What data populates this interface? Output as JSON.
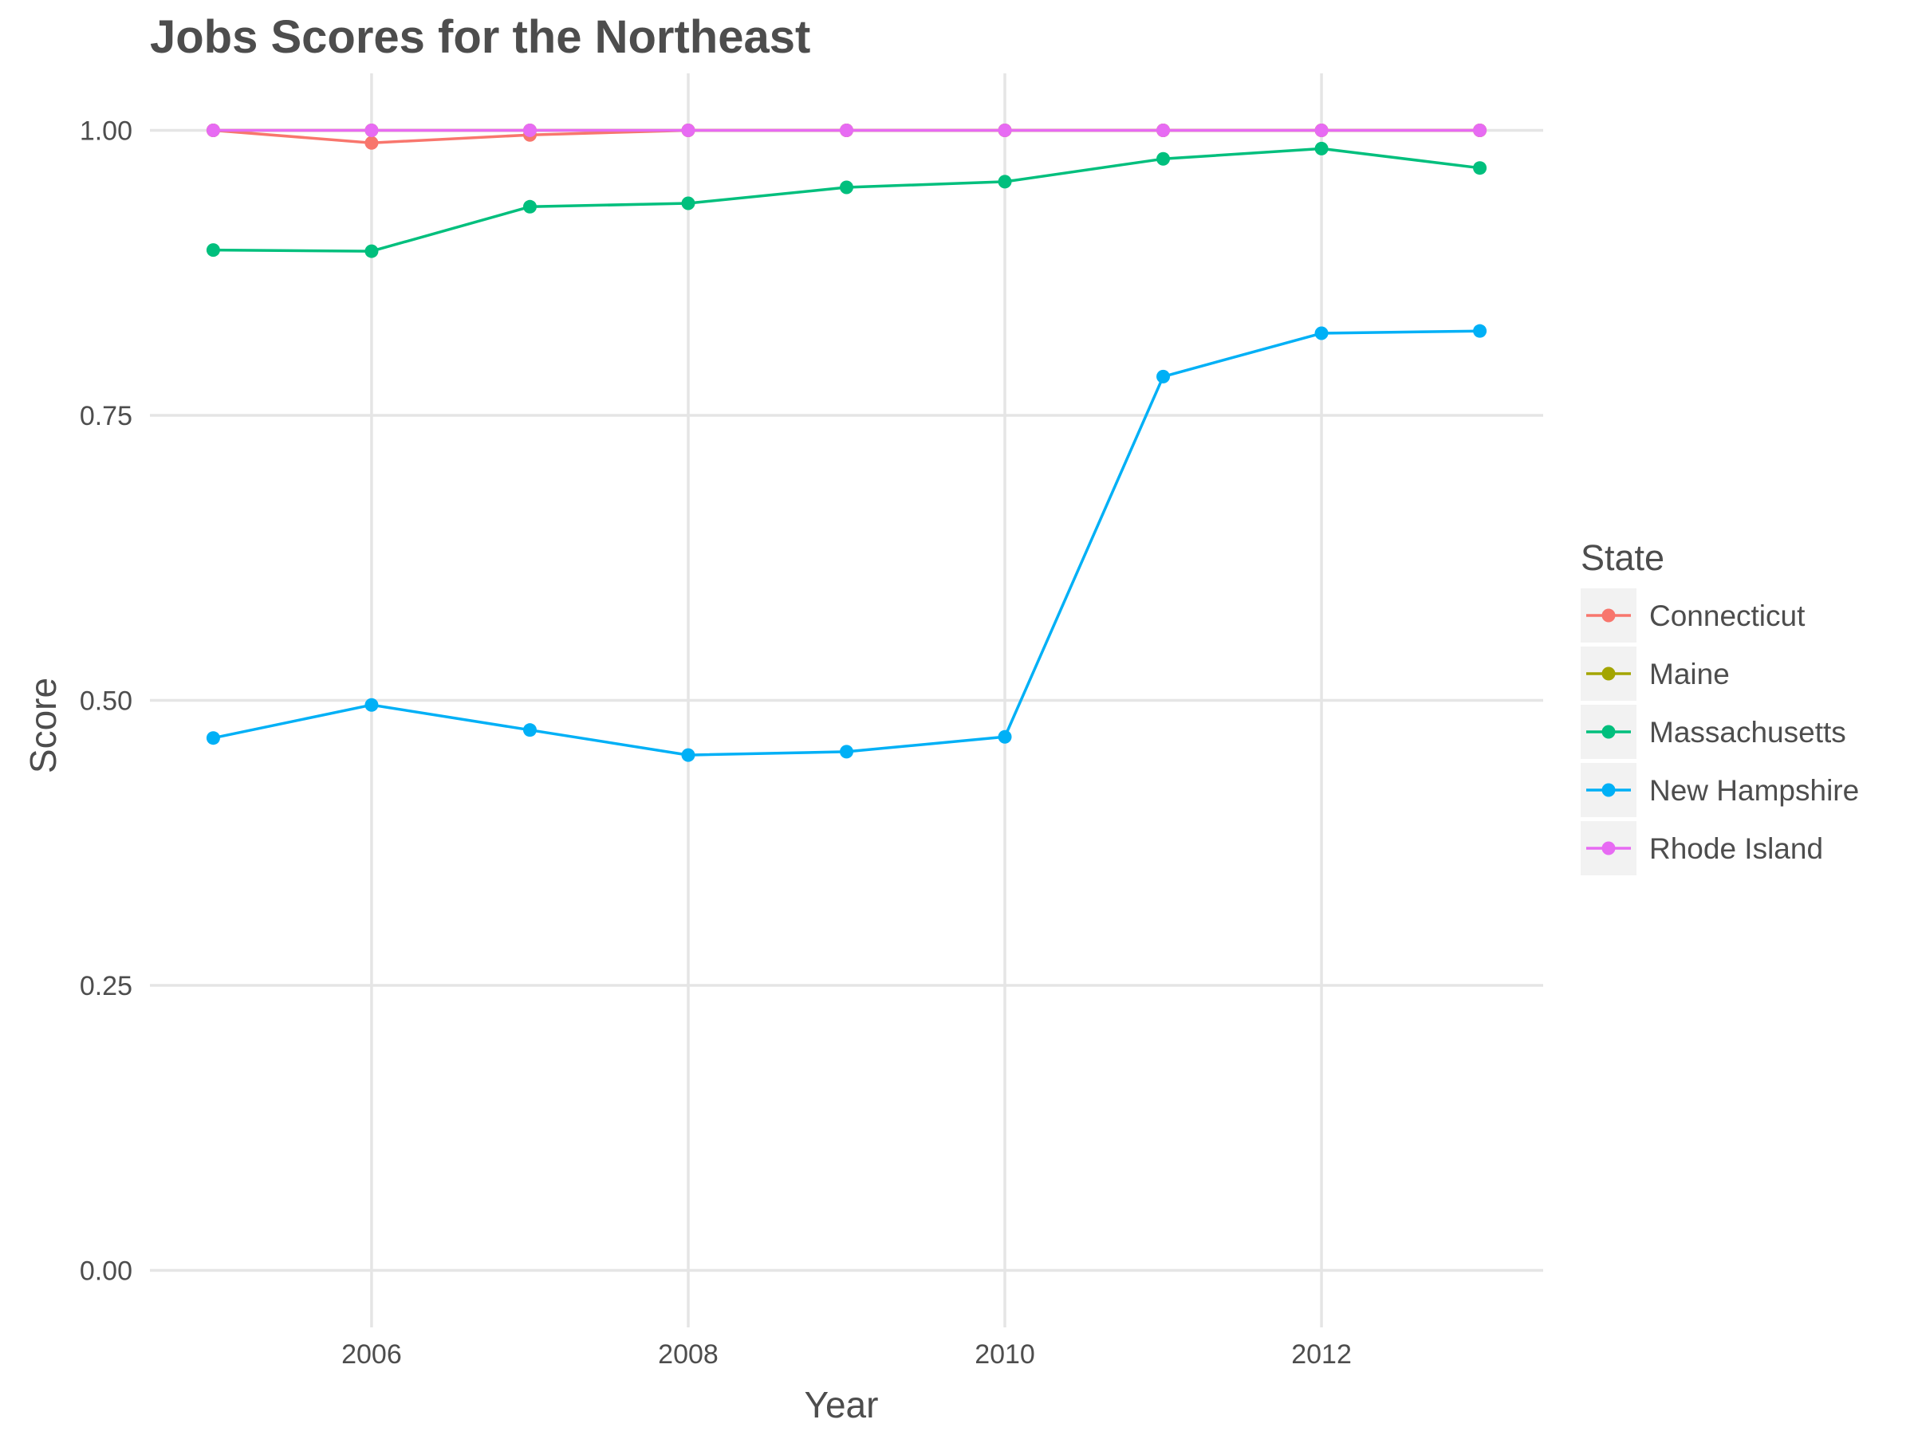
{
  "chart_data": {
    "type": "line",
    "title": "Jobs Scores for the Northeast",
    "xlabel": "Year",
    "ylabel": "Score",
    "x": [
      2005,
      2006,
      2007,
      2008,
      2009,
      2010,
      2011,
      2012,
      2013
    ],
    "x_ticks": [
      2006,
      2008,
      2010,
      2012
    ],
    "x_tick_labels": [
      "2006",
      "2008",
      "2010",
      "2012"
    ],
    "y_ticks": [
      0,
      0.25,
      0.5,
      0.75,
      1
    ],
    "y_tick_labels": [
      "0.00",
      "0.25",
      "0.50",
      "0.75",
      "1.00"
    ],
    "xlim": [
      2004.6,
      2013.4
    ],
    "ylim": [
      -0.05,
      1.05
    ],
    "grid": true,
    "legend": {
      "title": "State",
      "position": "right"
    },
    "series": [
      {
        "name": "Connecticut",
        "color": "#F8766D",
        "values": [
          1.0,
          0.989,
          0.996,
          1.0,
          1.0,
          1.0,
          1.0,
          1.0,
          1.0
        ]
      },
      {
        "name": "Maine",
        "color": "#A3A500",
        "values": [
          1.0,
          1.0,
          1.0,
          1.0,
          1.0,
          1.0,
          1.0,
          1.0,
          1.0
        ]
      },
      {
        "name": "Massachusetts",
        "color": "#00BF7D",
        "values": [
          0.895,
          0.894,
          0.933,
          0.936,
          0.95,
          0.955,
          0.975,
          0.984,
          0.967
        ]
      },
      {
        "name": "New Hampshire",
        "color": "#00B0F6",
        "values": [
          0.467,
          0.496,
          0.474,
          0.452,
          0.455,
          0.468,
          0.784,
          0.822,
          0.824
        ]
      },
      {
        "name": "Rhode Island",
        "color": "#E76BF3",
        "values": [
          1.0,
          1.0,
          1.0,
          1.0,
          1.0,
          1.0,
          1.0,
          1.0,
          1.0
        ]
      }
    ]
  }
}
